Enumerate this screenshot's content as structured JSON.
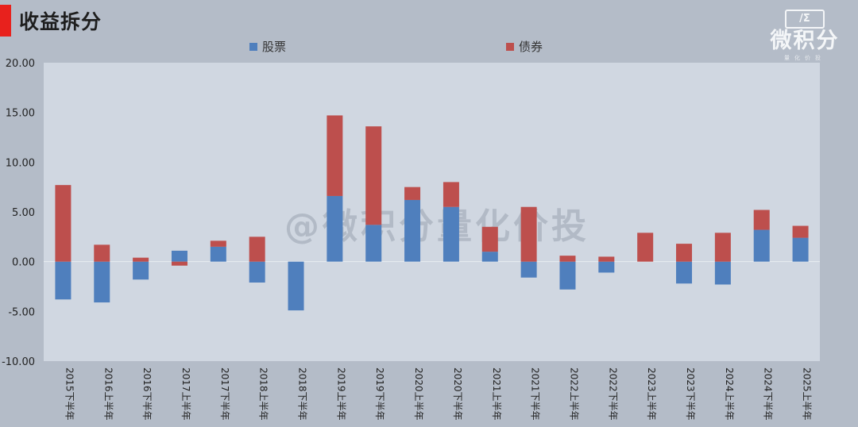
{
  "header": {
    "title": "收益拆分"
  },
  "logo": {
    "mark": "/Σ",
    "text": "微积分",
    "sub": "量化价投"
  },
  "watermark": "@微积分量化价投",
  "colors": {
    "background": "#b4bcc8",
    "plot_area": "#d0d7e1",
    "stock": "#4f7fbd",
    "bond": "#bd4f4d",
    "accent": "#e8211d"
  },
  "chart_data": {
    "type": "bar",
    "stacked": true,
    "title": "收益拆分",
    "categories": [
      "2015下半年",
      "2016上半年",
      "2016下半年",
      "2017上半年",
      "2017下半年",
      "2018上半年",
      "2018下半年",
      "2019上半年",
      "2019下半年",
      "2020上半年",
      "2020下半年",
      "2021上半年",
      "2021下半年",
      "2022上半年",
      "2022下半年",
      "2023上半年",
      "2023下半年",
      "2024上半年",
      "2024下半年",
      "2025上半年"
    ],
    "series": [
      {
        "name": "股票",
        "color": "#4f7fbd",
        "values": [
          -3.8,
          -4.1,
          -1.8,
          1.1,
          1.5,
          -2.1,
          -4.9,
          6.6,
          3.7,
          6.2,
          5.5,
          1.0,
          -1.6,
          -2.8,
          -1.1,
          0.0,
          -2.2,
          -2.3,
          3.2,
          2.4
        ]
      },
      {
        "name": "债券",
        "color": "#bd4f4d",
        "values": [
          7.7,
          1.7,
          0.4,
          -0.4,
          0.6,
          2.5,
          0.0,
          8.1,
          9.9,
          1.3,
          2.5,
          2.5,
          5.5,
          0.6,
          0.5,
          2.9,
          1.8,
          2.9,
          2.0,
          1.2
        ]
      }
    ],
    "yticks": [
      "20.00",
      "15.00",
      "10.00",
      "5.00",
      "0.00",
      "-5.00",
      "-10.00"
    ],
    "ylim": [
      -10,
      20
    ],
    "legend": "top-center",
    "grid": false
  }
}
